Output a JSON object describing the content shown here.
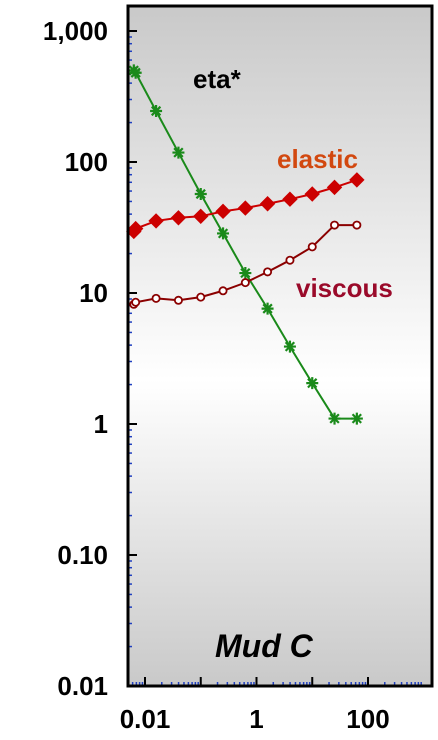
{
  "chart_data": {
    "type": "line",
    "title": "",
    "xlabel": "",
    "ylabel": "",
    "x_scale": "log",
    "y_scale": "log",
    "xlim": [
      0.005,
      1000
    ],
    "ylim": [
      0.01,
      2000
    ],
    "x_ticks": [
      {
        "value": 0.01,
        "label": "0.01"
      },
      {
        "value": 1,
        "label": "1"
      },
      {
        "value": 100,
        "label": "100"
      }
    ],
    "y_ticks": [
      {
        "value": 1000,
        "label": "1,000"
      },
      {
        "value": 100,
        "label": "100"
      },
      {
        "value": 10,
        "label": "10"
      },
      {
        "value": 1,
        "label": "1"
      },
      {
        "value": 0.1,
        "label": "0.10"
      },
      {
        "value": 0.01,
        "label": "0.01"
      }
    ],
    "grid": false,
    "panel_label": "Mud C",
    "series": [
      {
        "name": "eta*",
        "color": "#1a8a1a",
        "marker": "asterisk",
        "x": [
          0.0063,
          0.0068,
          0.0158,
          0.0398,
          0.1,
          0.251,
          0.631,
          1.58,
          3.98,
          10,
          25.1,
          63.1
        ],
        "y": [
          500,
          480,
          245,
          118,
          57,
          28.5,
          14.2,
          7.6,
          3.9,
          2.05,
          1.1,
          1.1
        ]
      },
      {
        "name": "elastic",
        "color": "#cc0000",
        "label_color": "#d2480f",
        "marker": "diamond",
        "x": [
          0.0063,
          0.0068,
          0.0158,
          0.0398,
          0.1,
          0.251,
          0.631,
          1.58,
          3.98,
          10,
          25.1,
          63.1
        ],
        "y": [
          29.5,
          31,
          35.5,
          37.5,
          38.5,
          42,
          44.5,
          48,
          52,
          57,
          64,
          73
        ]
      },
      {
        "name": "viscous",
        "color": "#8b0000",
        "label_color": "#9a0a2a",
        "marker": "circle",
        "x": [
          0.0063,
          0.0068,
          0.0158,
          0.0398,
          0.1,
          0.251,
          0.631,
          1.58,
          3.98,
          10,
          25.1,
          63.1
        ],
        "y": [
          8.2,
          8.5,
          9.1,
          8.8,
          9.3,
          10.4,
          12,
          14.5,
          17.8,
          22.5,
          33,
          33
        ]
      }
    ]
  }
}
